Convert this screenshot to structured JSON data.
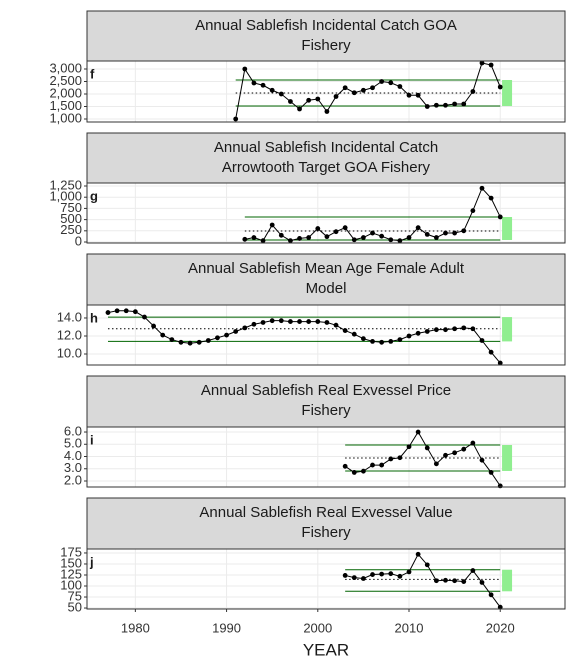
{
  "chart_data": [
    {
      "type": "line",
      "title": [
        "Annual Sablefish Incidental Catch GOA",
        "Fishery"
      ],
      "annotation": "f",
      "x": [
        1991,
        1992,
        1993,
        1994,
        1995,
        1996,
        1997,
        1998,
        1999,
        2000,
        2001,
        2002,
        2003,
        2004,
        2005,
        2006,
        2007,
        2008,
        2009,
        2010,
        2011,
        2012,
        2013,
        2014,
        2015,
        2016,
        2017,
        2018,
        2019,
        2020
      ],
      "values": [
        1000,
        3000,
        2440,
        2350,
        2150,
        2000,
        1700,
        1400,
        1750,
        1800,
        1300,
        1900,
        2250,
        2050,
        2150,
        2250,
        2500,
        2450,
        2300,
        1950,
        1950,
        1500,
        1550,
        1550,
        1600,
        1600,
        2100,
        3240,
        3160,
        2280
      ],
      "hlines": [
        2560,
        2040,
        1520
      ],
      "ylim": [
        880,
        3320
      ],
      "yticks": [
        {
          "value": 1000,
          "label": "1,000"
        },
        {
          "value": 1500,
          "label": "1,500"
        },
        {
          "value": 2000,
          "label": "2,000"
        },
        {
          "value": 2500,
          "label": "2,500"
        },
        {
          "value": 3000,
          "label": "3,000"
        }
      ],
      "xlim": [
        1974.7,
        2027.1
      ],
      "xticks": [
        1980,
        1990,
        2000,
        2010,
        2020
      ],
      "color": "#000000",
      "hline_color": "#006400",
      "trend_color": "#90ee90",
      "grid": true
    },
    {
      "type": "line",
      "title": [
        "Annual Sablefish Incidental Catch",
        "Arrowtooth Target GOA Fishery"
      ],
      "annotation": "g",
      "x": [
        1992,
        1993,
        1994,
        1995,
        1996,
        1997,
        1998,
        1999,
        2000,
        2001,
        2002,
        2003,
        2004,
        2005,
        2006,
        2007,
        2008,
        2009,
        2010,
        2011,
        2012,
        2013,
        2014,
        2015,
        2016,
        2017,
        2018,
        2019,
        2020
      ],
      "values": [
        60,
        100,
        30,
        380,
        150,
        30,
        80,
        100,
        300,
        120,
        230,
        320,
        50,
        100,
        200,
        130,
        50,
        30,
        100,
        320,
        170,
        100,
        200,
        200,
        250,
        700,
        1200,
        980,
        560
      ],
      "hlines": [
        558,
        245,
        45
      ],
      "ylim": [
        -22,
        1317
      ],
      "yticks": [
        0,
        250,
        500,
        750,
        {
          "value": 1000,
          "label": "1,000"
        },
        {
          "value": 1250,
          "label": "1,250"
        }
      ],
      "xlim": [
        1974.7,
        2027.1
      ],
      "xticks": [
        1980,
        1990,
        2000,
        2010,
        2020
      ],
      "color": "#000000",
      "hline_color": "#006400",
      "trend_color": "#90ee90",
      "grid": true
    },
    {
      "type": "line",
      "title": [
        "Annual Sablefish Mean Age Female Adult",
        "Model"
      ],
      "annotation": "h",
      "x": [
        1977,
        1978,
        1979,
        1980,
        1981,
        1982,
        1983,
        1984,
        1985,
        1986,
        1987,
        1988,
        1989,
        1990,
        1991,
        1992,
        1993,
        1994,
        1995,
        1996,
        1997,
        1998,
        1999,
        2000,
        2001,
        2002,
        2003,
        2004,
        2005,
        2006,
        2007,
        2008,
        2009,
        2010,
        2011,
        2012,
        2013,
        2014,
        2015,
        2016,
        2017,
        2018,
        2019,
        2020
      ],
      "values": [
        14.6,
        14.8,
        14.8,
        14.7,
        14.1,
        13.1,
        12.1,
        11.6,
        11.3,
        11.2,
        11.3,
        11.5,
        11.8,
        12.1,
        12.5,
        12.9,
        13.3,
        13.5,
        13.7,
        13.7,
        13.6,
        13.6,
        13.6,
        13.6,
        13.5,
        13.2,
        12.6,
        12.2,
        11.7,
        11.4,
        11.3,
        11.4,
        11.6,
        12.0,
        12.3,
        12.5,
        12.7,
        12.7,
        12.8,
        12.9,
        12.8,
        11.5,
        10.2,
        9.0
      ],
      "hlines": [
        14.1,
        12.8,
        11.4
      ],
      "ylim": [
        8.78,
        15.44
      ],
      "yticks": [
        {
          "value": 10,
          "label": "10.0"
        },
        {
          "value": 12,
          "label": "12.0"
        },
        {
          "value": 14,
          "label": "14.0"
        }
      ],
      "xlim": [
        1974.7,
        2027.1
      ],
      "xticks": [
        1980,
        1990,
        2000,
        2010,
        2020
      ],
      "color": "#000000",
      "hline_color": "#006400",
      "trend_color": "#90ee90",
      "grid": true
    },
    {
      "type": "line",
      "title": [
        "Annual Sablefish Real Exvessel Price",
        "Fishery"
      ],
      "annotation": "i",
      "x": [
        2003,
        2004,
        2005,
        2006,
        2007,
        2008,
        2009,
        2010,
        2011,
        2012,
        2013,
        2014,
        2015,
        2016,
        2017,
        2018,
        2019,
        2020
      ],
      "values": [
        3.2,
        2.7,
        2.8,
        3.3,
        3.3,
        3.8,
        3.9,
        4.8,
        6.0,
        4.7,
        3.4,
        4.1,
        4.3,
        4.6,
        5.1,
        3.7,
        2.7,
        1.6
      ],
      "hlines": [
        4.94,
        3.88,
        2.82
      ],
      "ylim": [
        1.51,
        6.41
      ],
      "yticks": [
        {
          "value": 2,
          "label": "2.0"
        },
        {
          "value": 3,
          "label": "3.0"
        },
        {
          "value": 4,
          "label": "4.0"
        },
        {
          "value": 5,
          "label": "5.0"
        },
        {
          "value": 6,
          "label": "6.0"
        }
      ],
      "xlim": [
        1974.7,
        2027.1
      ],
      "xticks": [
        1980,
        1990,
        2000,
        2010,
        2020
      ],
      "color": "#000000",
      "hline_color": "#006400",
      "trend_color": "#90ee90",
      "grid": true
    },
    {
      "type": "line",
      "title": [
        "Annual Sablefish Real Exvessel Value",
        "Fishery"
      ],
      "annotation": "j",
      "x": [
        2003,
        2004,
        2005,
        2006,
        2007,
        2008,
        2009,
        2010,
        2011,
        2012,
        2013,
        2014,
        2015,
        2016,
        2017,
        2018,
        2019,
        2020
      ],
      "values": [
        124,
        119,
        117,
        126,
        127,
        128,
        122,
        132,
        172,
        148,
        112,
        113,
        112,
        110,
        135,
        108,
        80,
        52
      ],
      "hlines": [
        137,
        115,
        88
      ],
      "ylim": [
        47.8,
        184
      ],
      "yticks": [
        50,
        75,
        100,
        125,
        150,
        175
      ],
      "xlim": [
        1974.7,
        2027.1
      ],
      "xticks": [
        1980,
        1990,
        2000,
        2010,
        2020
      ],
      "xlabel": "YEAR",
      "color": "#000000",
      "hline_color": "#006400",
      "trend_color": "#90ee90",
      "grid": true
    }
  ]
}
